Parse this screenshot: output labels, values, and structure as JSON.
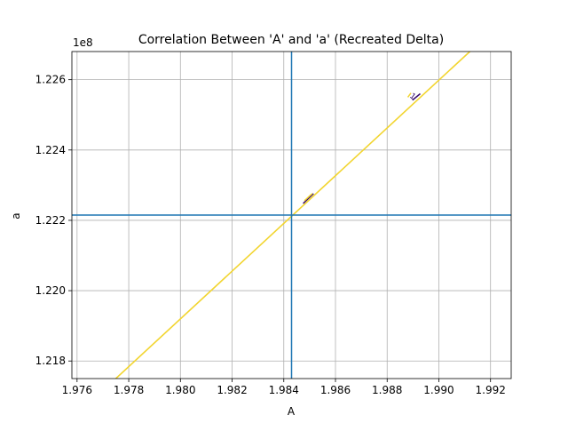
{
  "chart_data": {
    "type": "line",
    "title": "Correlation Between 'A' and 'a' (Recreated Delta)",
    "xlabel": "A",
    "ylabel": "a",
    "y_offset_text": "1e8",
    "xlim": [
      1.9758,
      1.9928
    ],
    "ylim": [
      1.2175,
      1.2268
    ],
    "x_ticks": [
      1.976,
      1.978,
      1.98,
      1.982,
      1.984,
      1.986,
      1.988,
      1.99,
      1.992
    ],
    "x_tick_labels": [
      "1.976",
      "1.978",
      "1.980",
      "1.982",
      "1.984",
      "1.986",
      "1.988",
      "1.990",
      "1.992"
    ],
    "y_ticks": [
      1.218,
      1.22,
      1.222,
      1.224,
      1.226
    ],
    "y_tick_labels": [
      "1.218",
      "1.220",
      "1.222",
      "1.224",
      "1.226"
    ],
    "grid": true,
    "series": [
      {
        "color": "#f2d530",
        "x": [
          1.9775,
          1.9912
        ],
        "y": [
          1.2175,
          1.2268
        ]
      }
    ],
    "reference_lines": {
      "vertical_x": 1.9843,
      "horizontal_y": 1.22215,
      "color": "#1f77b4"
    },
    "contour_segments": [
      {
        "x": [
          1.98475,
          1.98515
        ],
        "y": [
          1.22248,
          1.22276
        ],
        "color": "#3b0f70"
      },
      {
        "x": [
          1.9848,
          1.9851
        ],
        "y": [
          1.22256,
          1.22276
        ],
        "color": "#f2d530"
      },
      {
        "x": [
          1.98898,
          1.98928
        ],
        "y": [
          1.22542,
          1.2256
        ],
        "color": "#3b0f70"
      },
      {
        "x": [
          1.9888,
          1.98892
        ],
        "y": [
          1.2255,
          1.22562
        ],
        "color": "#f2d530"
      }
    ],
    "contour_labels": [
      {
        "text": "1",
        "x": 1.98898,
        "y": 1.22552,
        "color": "#3b0f70"
      }
    ]
  }
}
